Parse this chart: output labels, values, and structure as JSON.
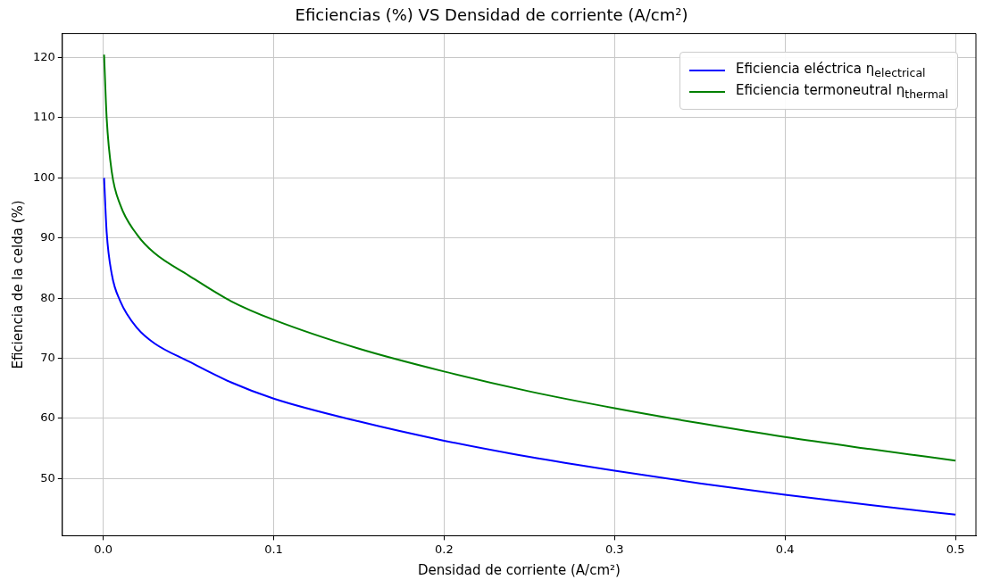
{
  "chart_data": {
    "type": "line",
    "title": "Eficiencias (%) VS Densidad de corriente (A/cm²)",
    "xlabel": "Densidad de corriente (A/cm²)",
    "ylabel": "Eficiencia de la celda (%)",
    "x": [
      0.0005,
      0.002,
      0.005,
      0.01,
      0.02,
      0.03,
      0.05,
      0.075,
      0.1,
      0.15,
      0.2,
      0.25,
      0.3,
      0.35,
      0.4,
      0.45,
      0.5
    ],
    "series": [
      {
        "name": "Eficiencia eléctrica η$_{electrical}$",
        "color": "#0000ff",
        "values": [
          100,
          91,
          84,
          79.5,
          75,
          72.5,
          69.5,
          66,
          63.3,
          59.5,
          56.3,
          53.6,
          51.3,
          49.2,
          47.3,
          45.6,
          44
        ]
      },
      {
        "name": "Eficiencia termoneutral η$_{thermal}$",
        "color": "#008000",
        "values": [
          120.5,
          110,
          101,
          95.5,
          90.5,
          87.5,
          83.8,
          79.5,
          76.4,
          71.6,
          67.8,
          64.5,
          61.7,
          59.2,
          56.9,
          54.9,
          53
        ]
      }
    ],
    "xlim": [
      -0.024,
      0.512
    ],
    "ylim": [
      40.5,
      124
    ],
    "xticks": [
      {
        "value": 0,
        "label": "0.0"
      },
      0.1,
      0.2,
      0.3,
      0.4,
      0.5
    ],
    "yticks": [
      50,
      60,
      70,
      80,
      90,
      100,
      110,
      120
    ],
    "grid": true,
    "legend": "top right",
    "marker": "none",
    "line_style": "solid"
  }
}
